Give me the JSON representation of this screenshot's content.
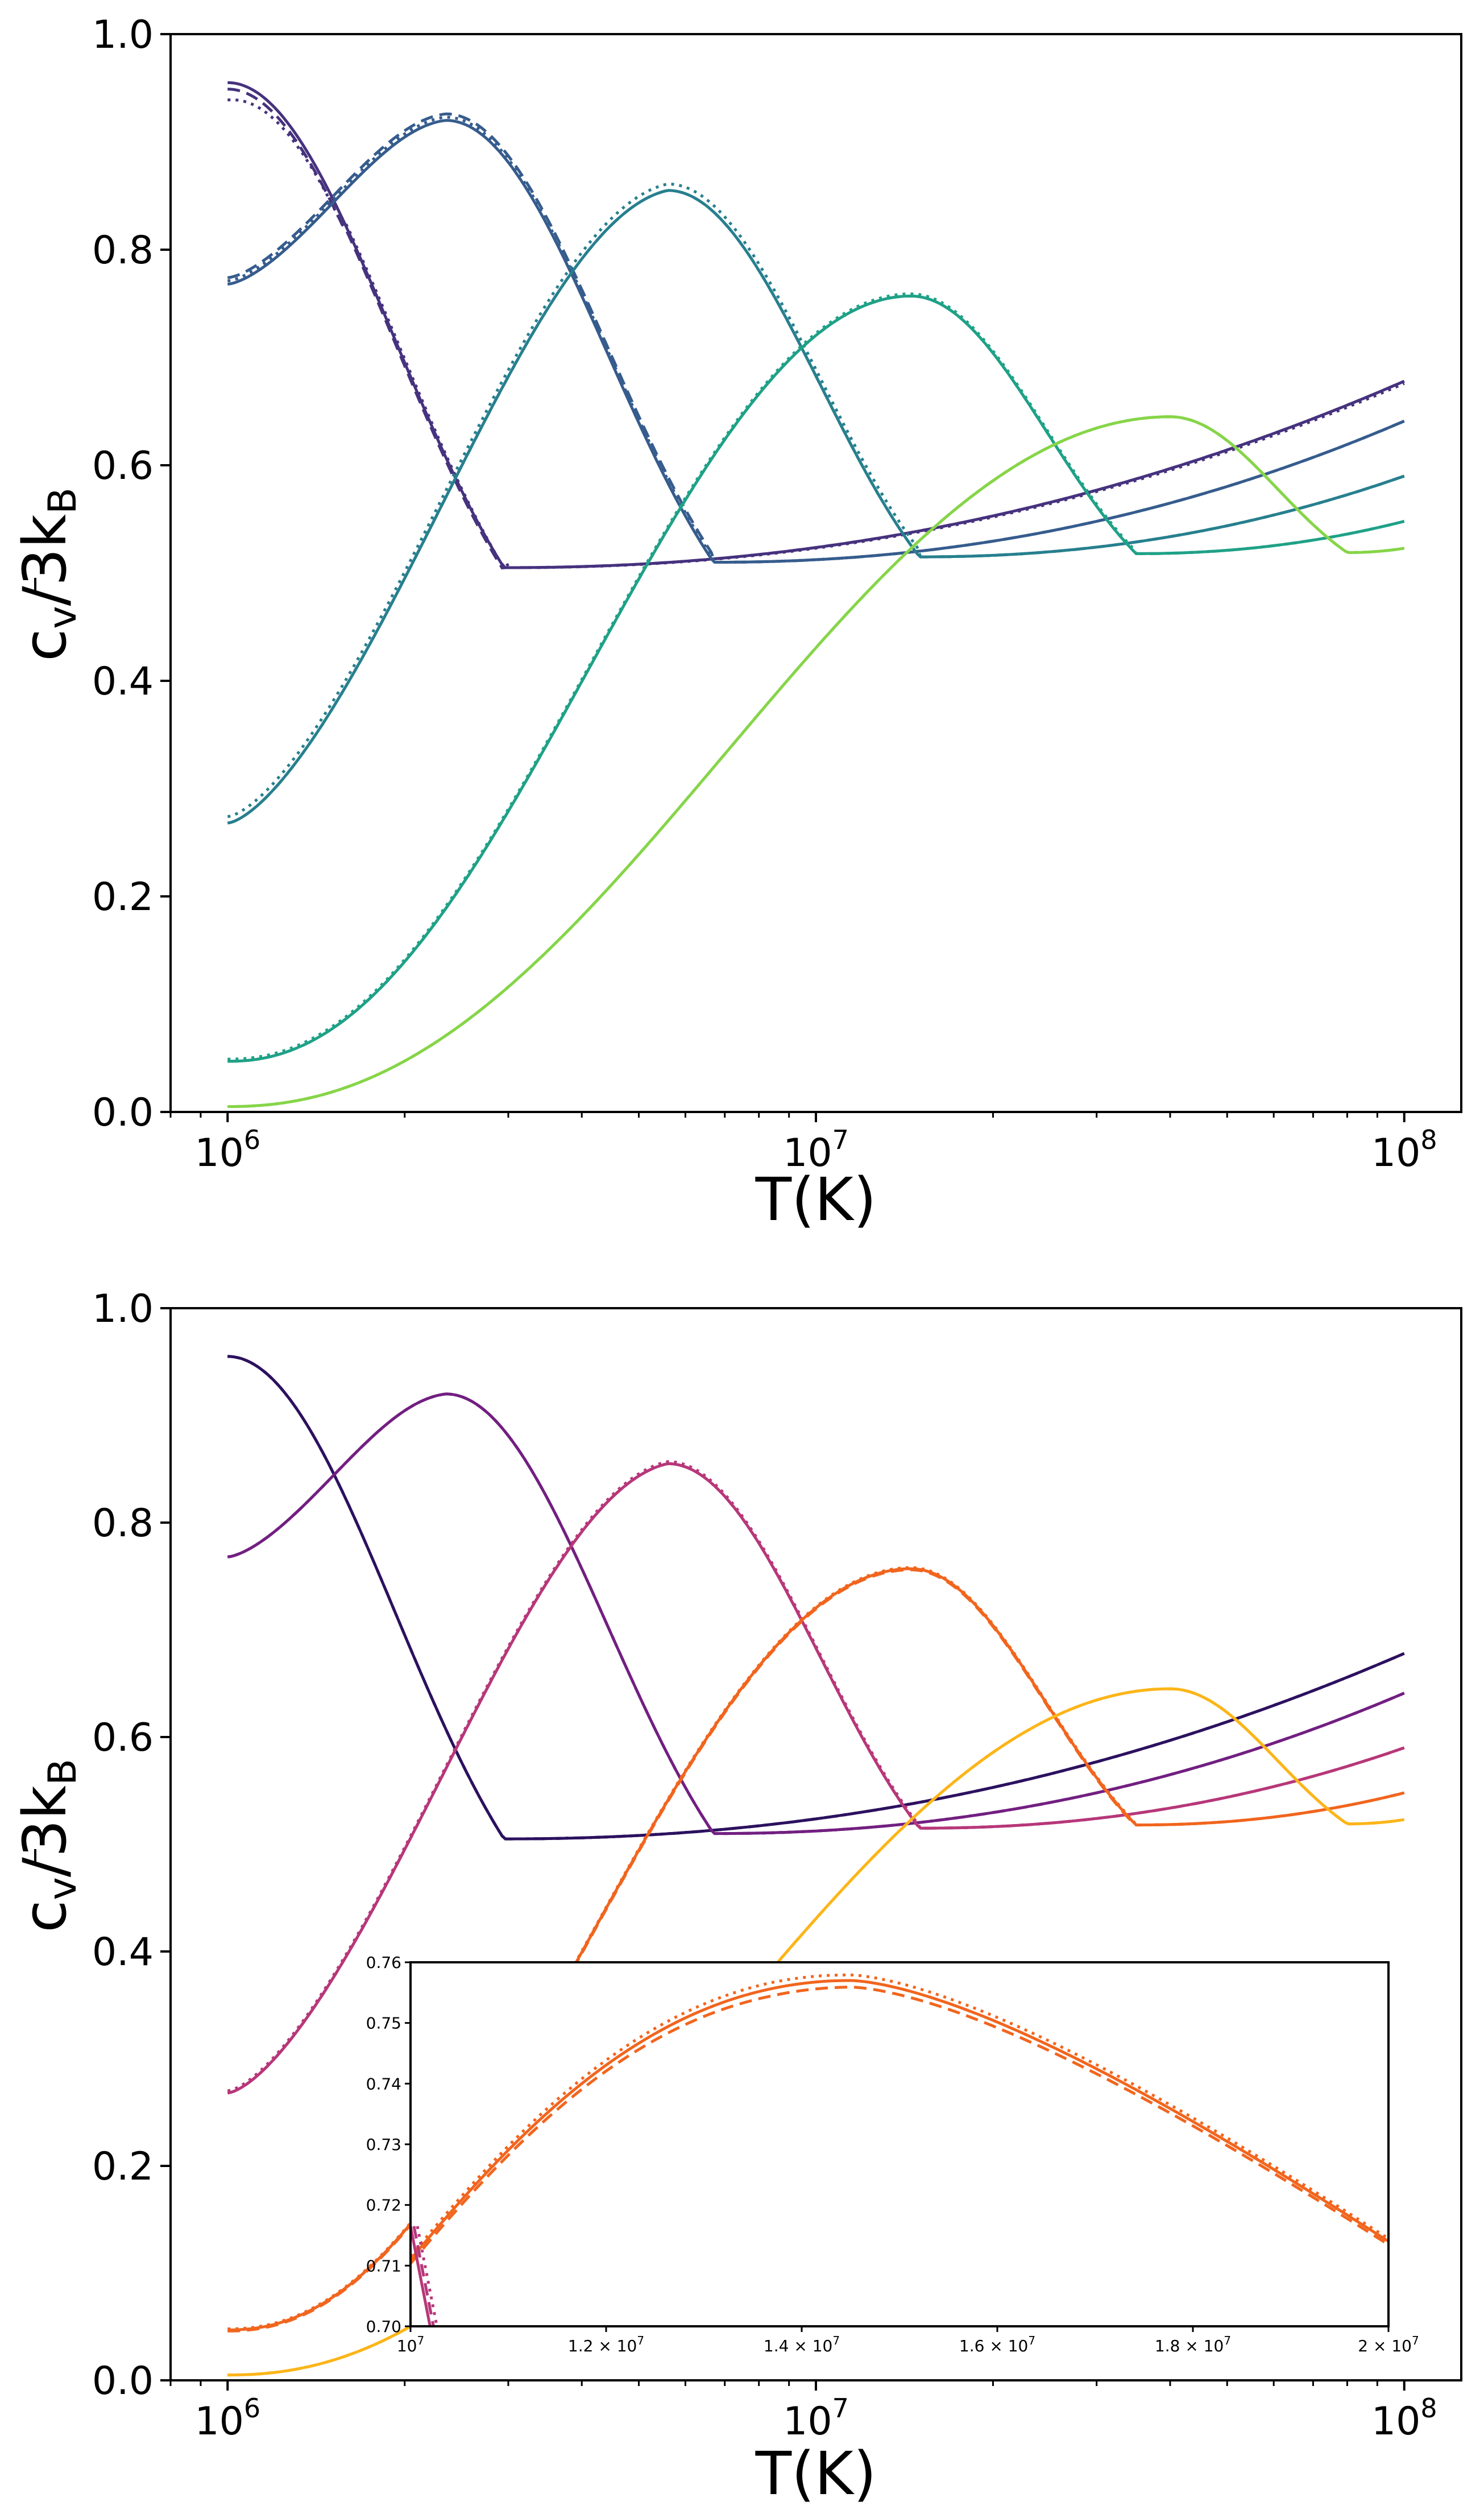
{
  "chart_data": [
    {
      "type": "line",
      "panel": "top",
      "xscale": "log",
      "xlabel": "T(K)",
      "ylabel": "c̄v/3kB",
      "xlim": [
        800000,
        125000000
      ],
      "ylim": [
        0.0,
        1.0
      ],
      "xticks": [
        {
          "value": 1000000,
          "base": "10",
          "exp": "6"
        },
        {
          "value": 10000000,
          "base": "10",
          "exp": "7"
        },
        {
          "value": 100000000,
          "base": "10",
          "exp": "8"
        }
      ],
      "yticks": [
        "0.0",
        "0.2",
        "0.4",
        "0.6",
        "0.8",
        "1.0"
      ],
      "styles": [
        "solid",
        "dashed",
        "dotted"
      ],
      "series": [
        {
          "name": "curve-1",
          "color": "#46327e",
          "T0": 1000000,
          "peak": 0.955,
          "Tp": 1000000,
          "Tm": 2950000,
          "a": 0.0,
          "dr": 1.8,
          "styleOffsets": {
            "dashed": {
              "dT": 0.0,
              "dy": -0.003
            },
            "dotted": {
              "dT": -0.02,
              "dy": -0.008
            }
          },
          "min": 0.505,
          "T100": 0.678
        },
        {
          "name": "curve-2",
          "color": "#365c8d",
          "T0": 1000000,
          "peak": 0.92,
          "Tp": 2350000,
          "Tm": 6700000,
          "a": 0.768,
          "dr": 1.5,
          "styleOffsets": {
            "dashed": {
              "dT": 0.0,
              "dy": 0.006
            },
            "dotted": {
              "dT": 0.0,
              "dy": 0.003
            }
          },
          "min": 0.51,
          "T100": 0.641
        },
        {
          "name": "curve-3",
          "color": "#277f8e",
          "T0": 1000000,
          "peak": 0.855,
          "Tp": 5600000,
          "Tm": 15000000,
          "a": 0.268,
          "dr": 1.5,
          "styleOffsets": {
            "dashed": {
              "dT": 0.0,
              "dy": 0.0
            },
            "dotted": {
              "dT": 0.0,
              "dy": 0.006
            }
          },
          "min": 0.515,
          "T100": 0.59
        },
        {
          "name": "curve-4",
          "color": "#1fa187",
          "T0": 1000000,
          "peak": 0.757,
          "Tp": 14500000,
          "Tm": 35000000,
          "a": 0.047,
          "dr": 1.5,
          "styleOffsets": {
            "dashed": {
              "dT": 0.0,
              "dy": 0.0
            },
            "dotted": {
              "dT": 0.0,
              "dy": 0.002
            }
          },
          "min": 0.518,
          "T100": 0.548
        },
        {
          "name": "curve-5",
          "color": "#86d549",
          "T0": 1000000,
          "peak": 0.645,
          "Tp": 40000000,
          "Tm": 80000000,
          "a": 0.005,
          "dr": 1.5,
          "styleOffsets": {
            "dashed": {
              "dT": 0.0,
              "dy": 0.0
            },
            "dotted": {
              "dT": 0.0,
              "dy": 0.0
            }
          },
          "min": 0.519,
          "T100": 0.523
        }
      ]
    },
    {
      "type": "line",
      "panel": "bottom",
      "xscale": "log",
      "xlabel": "T(K)",
      "ylabel": "c̄v/3kB",
      "xlim": [
        800000,
        125000000
      ],
      "ylim": [
        0.0,
        1.0
      ],
      "xticks": [
        {
          "value": 1000000,
          "base": "10",
          "exp": "6"
        },
        {
          "value": 10000000,
          "base": "10",
          "exp": "7"
        },
        {
          "value": 100000000,
          "base": "10",
          "exp": "8"
        }
      ],
      "yticks": [
        "0.0",
        "0.2",
        "0.4",
        "0.6",
        "0.8",
        "1.0"
      ],
      "styles": [
        "solid",
        "dashed",
        "dotted"
      ],
      "series": [
        {
          "name": "curve-1",
          "color": "#2c115f",
          "T0": 1000000,
          "peak": 0.955,
          "Tp": 1000000,
          "Tm": 2950000,
          "a": 0.0,
          "dr": 1.8,
          "styleOffsets": {
            "dashed": {
              "dT": 0.0,
              "dy": 0.0
            },
            "dotted": {
              "dT": 0.0,
              "dy": 0.0
            }
          },
          "min": 0.505,
          "T100": 0.678
        },
        {
          "name": "curve-2",
          "color": "#721f81",
          "T0": 1000000,
          "peak": 0.92,
          "Tp": 2350000,
          "Tm": 6700000,
          "a": 0.768,
          "dr": 1.5,
          "styleOffsets": {
            "dashed": {
              "dT": 0.0,
              "dy": 0.0
            },
            "dotted": {
              "dT": 0.0,
              "dy": 0.0
            }
          },
          "min": 0.51,
          "T100": 0.641
        },
        {
          "name": "curve-3",
          "color": "#b73779",
          "T0": 1000000,
          "peak": 0.855,
          "Tp": 5600000,
          "Tm": 15000000,
          "a": 0.268,
          "dr": 1.5,
          "styleOffsets": {
            "dashed": {
              "dT": 0.0,
              "dy": 0.0
            },
            "dotted": {
              "dT": 0.0,
              "dy": 0.002
            }
          },
          "min": 0.515,
          "T100": 0.59
        },
        {
          "name": "curve-4",
          "color": "#f1651e",
          "T0": 1000000,
          "peak": 0.757,
          "Tp": 14500000,
          "Tm": 35000000,
          "a": 0.047,
          "dr": 1.5,
          "styleOffsets": {
            "dashed": {
              "dT": 0.0,
              "dy": -0.001
            },
            "dotted": {
              "dT": 0.0,
              "dy": 0.001
            }
          },
          "min": 0.518,
          "T100": 0.548
        },
        {
          "name": "curve-5",
          "color": "#fcb519",
          "T0": 1000000,
          "peak": 0.645,
          "Tp": 40000000,
          "Tm": 80000000,
          "a": 0.005,
          "dr": 1.5,
          "styleOffsets": {
            "dashed": {
              "dT": 0.0,
              "dy": 0.0
            },
            "dotted": {
              "dT": 0.0,
              "dy": 0.0
            }
          },
          "min": 0.519,
          "T100": 0.523
        }
      ],
      "inset": {
        "xscale": "linear",
        "xlim": [
          10000000,
          20000000
        ],
        "ylim": [
          0.7,
          0.76
        ],
        "yticks": [
          "0.70",
          "0.71",
          "0.72",
          "0.73",
          "0.74",
          "0.75",
          "0.76"
        ],
        "xticks": [
          {
            "value": 10000000,
            "mant": "",
            "base": "10",
            "exp": "7"
          },
          {
            "value": 12000000,
            "mant": "1.2 × ",
            "base": "10",
            "exp": "7"
          },
          {
            "value": 14000000,
            "mant": "1.4 × ",
            "base": "10",
            "exp": "7"
          },
          {
            "value": 16000000,
            "mant": "1.6 × ",
            "base": "10",
            "exp": "7"
          },
          {
            "value": 18000000,
            "mant": "1.8 × ",
            "base": "10",
            "exp": "7"
          },
          {
            "value": 20000000,
            "mant": "2 × ",
            "base": "10",
            "exp": "7"
          }
        ]
      }
    }
  ]
}
